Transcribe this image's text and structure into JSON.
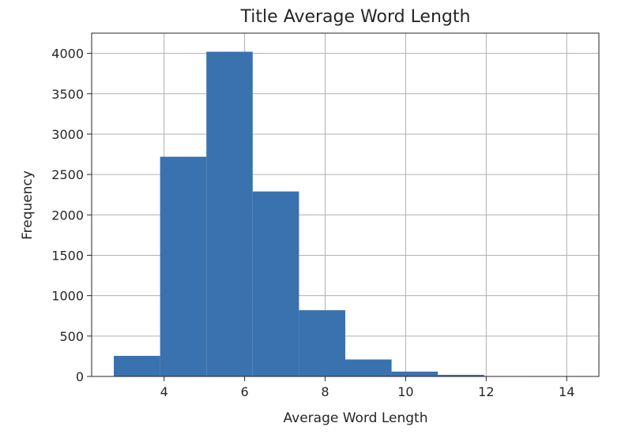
{
  "chart_data": {
    "type": "bar",
    "title": "Title Average Word Length",
    "xlabel": "Average Word Length",
    "ylabel": "Frequency",
    "xlim": [
      2.2,
      14.8
    ],
    "ylim": [
      0,
      4250
    ],
    "xticks": [
      4,
      6,
      8,
      10,
      12,
      14
    ],
    "yticks": [
      0,
      500,
      1000,
      1500,
      2000,
      2500,
      3000,
      3500,
      4000
    ],
    "grid": true,
    "bar_color": "#3a72b0",
    "bins": [
      {
        "x0": 2.75,
        "x1": 3.9,
        "value": 255
      },
      {
        "x0": 3.9,
        "x1": 5.05,
        "value": 2720
      },
      {
        "x0": 5.05,
        "x1": 6.2,
        "value": 4020
      },
      {
        "x0": 6.2,
        "x1": 7.35,
        "value": 2290
      },
      {
        "x0": 7.35,
        "x1": 8.5,
        "value": 820
      },
      {
        "x0": 8.5,
        "x1": 9.65,
        "value": 210
      },
      {
        "x0": 9.65,
        "x1": 10.8,
        "value": 60
      },
      {
        "x0": 10.8,
        "x1": 11.95,
        "value": 20
      },
      {
        "x0": 11.95,
        "x1": 13.1,
        "value": 5
      },
      {
        "x0": 13.1,
        "x1": 14.25,
        "value": 3
      }
    ]
  }
}
